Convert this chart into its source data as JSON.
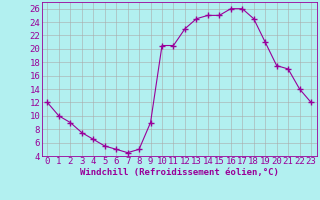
{
  "x": [
    0,
    1,
    2,
    3,
    4,
    5,
    6,
    7,
    8,
    9,
    10,
    11,
    12,
    13,
    14,
    15,
    16,
    17,
    18,
    19,
    20,
    21,
    22,
    23
  ],
  "y": [
    12,
    10,
    9,
    7.5,
    6.5,
    5.5,
    5,
    4.5,
    5,
    9,
    20.5,
    20.5,
    23,
    24.5,
    25,
    25,
    26,
    26,
    24.5,
    21,
    17.5,
    17,
    14,
    12
  ],
  "line_color": "#990099",
  "marker_color": "#990099",
  "bg_color": "#b2f0f0",
  "grid_color": "#aaaaaa",
  "xlabel": "Windchill (Refroidissement éolien,°C)",
  "xlabel_color": "#990099",
  "tick_color": "#990099",
  "ylim": [
    4,
    27
  ],
  "yticks": [
    4,
    6,
    8,
    10,
    12,
    14,
    16,
    18,
    20,
    22,
    24,
    26
  ],
  "xticks": [
    0,
    1,
    2,
    3,
    4,
    5,
    6,
    7,
    8,
    9,
    10,
    11,
    12,
    13,
    14,
    15,
    16,
    17,
    18,
    19,
    20,
    21,
    22,
    23
  ],
  "font_size": 6.5
}
